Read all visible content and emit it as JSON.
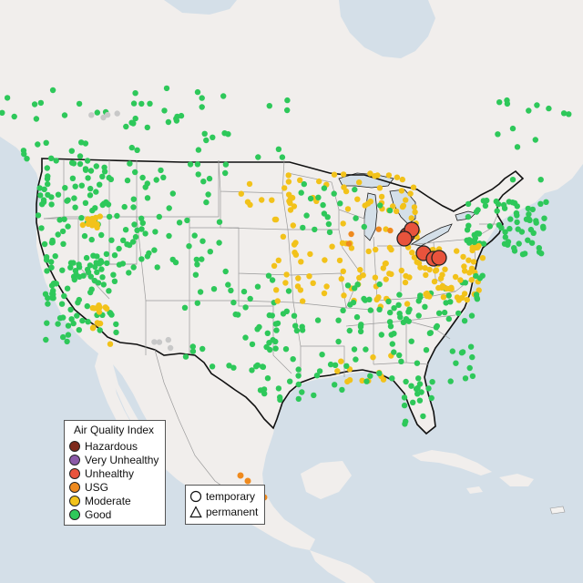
{
  "legend": {
    "title": "Air Quality Index",
    "items": [
      {
        "label": "Hazardous",
        "color": "#7e2a1c"
      },
      {
        "label": "Very Unhealthy",
        "color": "#8b5aa8"
      },
      {
        "label": "Unhealthy",
        "color": "#e8533c"
      },
      {
        "label": "USG",
        "color": "#ef8a1e"
      },
      {
        "label": "Moderate",
        "color": "#f2c21a"
      },
      {
        "label": "Good",
        "color": "#2ec85a"
      }
    ]
  },
  "site_types": {
    "temporary": "temporary",
    "permanent": "permanent"
  },
  "colors": {
    "ocean": "#d4dfe8",
    "land": "#f1eeec",
    "land_shade": "#e8e2e1",
    "state_border": "#9a9a9a",
    "country_border": "#111111",
    "no_data": "#c8c8c8"
  }
}
